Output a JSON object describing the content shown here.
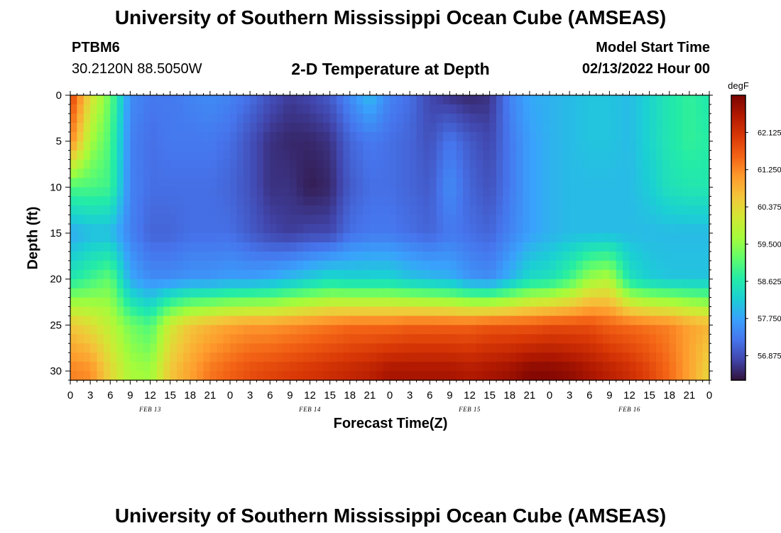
{
  "header": {
    "title": "University of Southern Mississippi Ocean Cube (AMSEAS)",
    "station_id": "PTBM6",
    "station_location": "30.2120N  88.5050W",
    "subtitle": "2-D Temperature at Depth",
    "model_start_label": "Model Start Time",
    "model_start_value": "02/13/2022 Hour 00"
  },
  "footer": {
    "title": "University of Southern Mississippi Ocean Cube (AMSEAS)"
  },
  "colors": {
    "colormap": [
      "#30123b",
      "#4145ab",
      "#4675ed",
      "#39a2fc",
      "#1bcfd4",
      "#24eca6",
      "#61fc6c",
      "#a4fc3b",
      "#d1e834",
      "#f3c63a",
      "#fe9b2d",
      "#f36315",
      "#d93806",
      "#b11901",
      "#7a0402"
    ]
  },
  "chart_data": {
    "type": "heatmap",
    "title": "2-D Temperature at Depth",
    "xlabel": "Forecast Time(Z)",
    "ylabel": "Depth (ft)",
    "x_unit": "hours since 02/13/2022 00Z",
    "x_range": [
      0,
      96
    ],
    "x_tick_step_hours": 3,
    "x_tick_labels": [
      "0",
      "3",
      "6",
      "9",
      "12",
      "15",
      "18",
      "21",
      "0",
      "3",
      "6",
      "9",
      "12",
      "15",
      "18",
      "21",
      "0",
      "3",
      "6",
      "9",
      "12",
      "15",
      "18",
      "21",
      "0",
      "3",
      "6",
      "9",
      "12",
      "15",
      "18",
      "21",
      "0"
    ],
    "date_labels": [
      {
        "label": "FEB 13",
        "x": 12
      },
      {
        "label": "FEB 14",
        "x": 36
      },
      {
        "label": "FEB 15",
        "x": 60
      },
      {
        "label": "FEB 16",
        "x": 84
      }
    ],
    "y_range": [
      0,
      31
    ],
    "y_inverted": true,
    "y_ticks": [
      0,
      5,
      10,
      15,
      20,
      25,
      30
    ],
    "colorbar": {
      "unit": "degF",
      "min": 56.3,
      "max": 63.0,
      "tick_values": [
        56.875,
        57.75,
        58.625,
        59.5,
        60.375,
        61.25,
        62.125
      ],
      "tick_labels": [
        "56.875",
        "57.750",
        "58.625",
        "59.500",
        "60.375",
        "61.250",
        "62.125"
      ]
    },
    "grid_hours": [
      0,
      3,
      6,
      9,
      12,
      15,
      18,
      21,
      24,
      27,
      30,
      33,
      36,
      39,
      42,
      45,
      48,
      51,
      54,
      57,
      60,
      63,
      66,
      69,
      72,
      75,
      78,
      81,
      84,
      87,
      90,
      93,
      96
    ],
    "grid_depths": [
      0,
      5,
      10,
      15,
      20,
      25,
      30
    ],
    "temperatures": [
      [
        62.0,
        60.3,
        59.2,
        57.5,
        57.3,
        57.3,
        57.4,
        57.5,
        57.4,
        57.2,
        56.9,
        56.7,
        56.8,
        57.0,
        57.5,
        58.0,
        57.4,
        57.2,
        56.8,
        56.6,
        56.5,
        56.6,
        57.4,
        57.8,
        57.9,
        58.0,
        58.1,
        58.1,
        58.0,
        58.3,
        58.6,
        58.8,
        58.6
      ],
      [
        61.3,
        59.7,
        59.0,
        57.4,
        57.2,
        57.3,
        57.3,
        57.3,
        57.2,
        56.9,
        56.6,
        56.5,
        56.5,
        56.6,
        57.1,
        57.3,
        57.2,
        57.1,
        56.9,
        57.3,
        57.0,
        56.8,
        57.3,
        57.7,
        57.9,
        58.0,
        58.1,
        58.1,
        58.0,
        58.3,
        58.6,
        58.8,
        58.7
      ],
      [
        59.0,
        59.0,
        58.9,
        57.4,
        57.2,
        57.2,
        57.2,
        57.2,
        57.1,
        56.9,
        56.6,
        56.6,
        56.4,
        56.5,
        57.0,
        57.2,
        57.2,
        57.1,
        57.0,
        57.5,
        57.1,
        56.9,
        57.3,
        57.7,
        57.9,
        58.0,
        58.0,
        58.0,
        58.0,
        58.2,
        58.5,
        58.6,
        58.6
      ],
      [
        57.8,
        58.0,
        58.0,
        57.4,
        57.1,
        57.1,
        57.2,
        57.2,
        57.2,
        57.0,
        56.8,
        56.7,
        56.8,
        56.8,
        57.2,
        57.3,
        57.3,
        57.2,
        57.1,
        57.3,
        57.2,
        57.1,
        57.4,
        57.7,
        57.9,
        58.0,
        58.0,
        58.0,
        58.0,
        58.0,
        58.0,
        58.0,
        58.0
      ],
      [
        58.6,
        58.9,
        59.2,
        57.8,
        57.5,
        57.5,
        57.6,
        57.6,
        57.7,
        57.7,
        57.8,
        58.0,
        58.2,
        58.4,
        58.3,
        58.3,
        58.3,
        58.1,
        58.0,
        57.9,
        57.6,
        57.5,
        57.9,
        58.4,
        58.5,
        58.9,
        59.6,
        59.8,
        58.5,
        58.2,
        58.1,
        58.1,
        58.1
      ],
      [
        60.6,
        60.3,
        59.9,
        59.3,
        59.0,
        60.1,
        60.6,
        60.8,
        61.0,
        61.1,
        61.1,
        61.2,
        61.3,
        61.4,
        61.5,
        61.5,
        61.5,
        61.6,
        61.6,
        61.6,
        61.6,
        61.7,
        61.7,
        61.7,
        61.8,
        61.8,
        61.8,
        61.6,
        61.5,
        61.4,
        61.3,
        61.0,
        60.8
      ],
      [
        61.3,
        61.2,
        60.4,
        59.7,
        59.6,
        60.6,
        61.0,
        61.4,
        61.6,
        61.8,
        61.9,
        62.0,
        62.1,
        62.2,
        62.3,
        62.4,
        62.6,
        62.6,
        62.6,
        62.6,
        62.5,
        62.6,
        62.7,
        62.9,
        62.9,
        62.8,
        62.6,
        62.4,
        62.2,
        61.9,
        61.5,
        61.0,
        60.4
      ]
    ]
  }
}
